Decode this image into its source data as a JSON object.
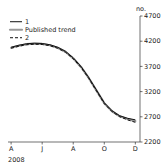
{
  "chart_data": {
    "type": "line",
    "title": "no.",
    "x_label": "2008",
    "x": [
      0,
      0.5,
      1,
      1.5,
      2,
      2.5,
      3,
      3.5,
      4,
      4.5,
      5,
      5.5,
      6,
      6.5,
      7,
      7.5,
      8
    ],
    "xlim": [
      -0.2,
      8.3
    ],
    "xticks": [
      {
        "value": 0,
        "label": "A"
      },
      {
        "value": 2,
        "label": "J"
      },
      {
        "value": 4,
        "label": "A"
      },
      {
        "value": 6,
        "label": "O"
      },
      {
        "value": 8,
        "label": "D"
      }
    ],
    "ylim": [
      2200,
      4700
    ],
    "yticks": [
      2200,
      2700,
      3200,
      3700,
      4200,
      4700
    ],
    "grid": false,
    "legend": "upper left",
    "series": [
      {
        "name": "1",
        "color": "#111111",
        "line_style": "solid",
        "values": [
          4080,
          4120,
          4150,
          4160,
          4155,
          4130,
          4080,
          4000,
          3870,
          3700,
          3480,
          3230,
          2980,
          2820,
          2720,
          2670,
          2640
        ]
      },
      {
        "name": "Published trend",
        "color": "#999999",
        "line_style": "solid",
        "values": [
          4070,
          4110,
          4140,
          4150,
          4145,
          4120,
          4070,
          3990,
          3860,
          3690,
          3470,
          3220,
          2970,
          2810,
          2710,
          2655,
          2615
        ]
      },
      {
        "name": "2",
        "color": "#111111",
        "line_style": "dashed",
        "values": [
          4060,
          4100,
          4130,
          4140,
          4135,
          4110,
          4060,
          3980,
          3850,
          3680,
          3460,
          3210,
          2960,
          2800,
          2700,
          2640,
          2590
        ]
      }
    ]
  }
}
